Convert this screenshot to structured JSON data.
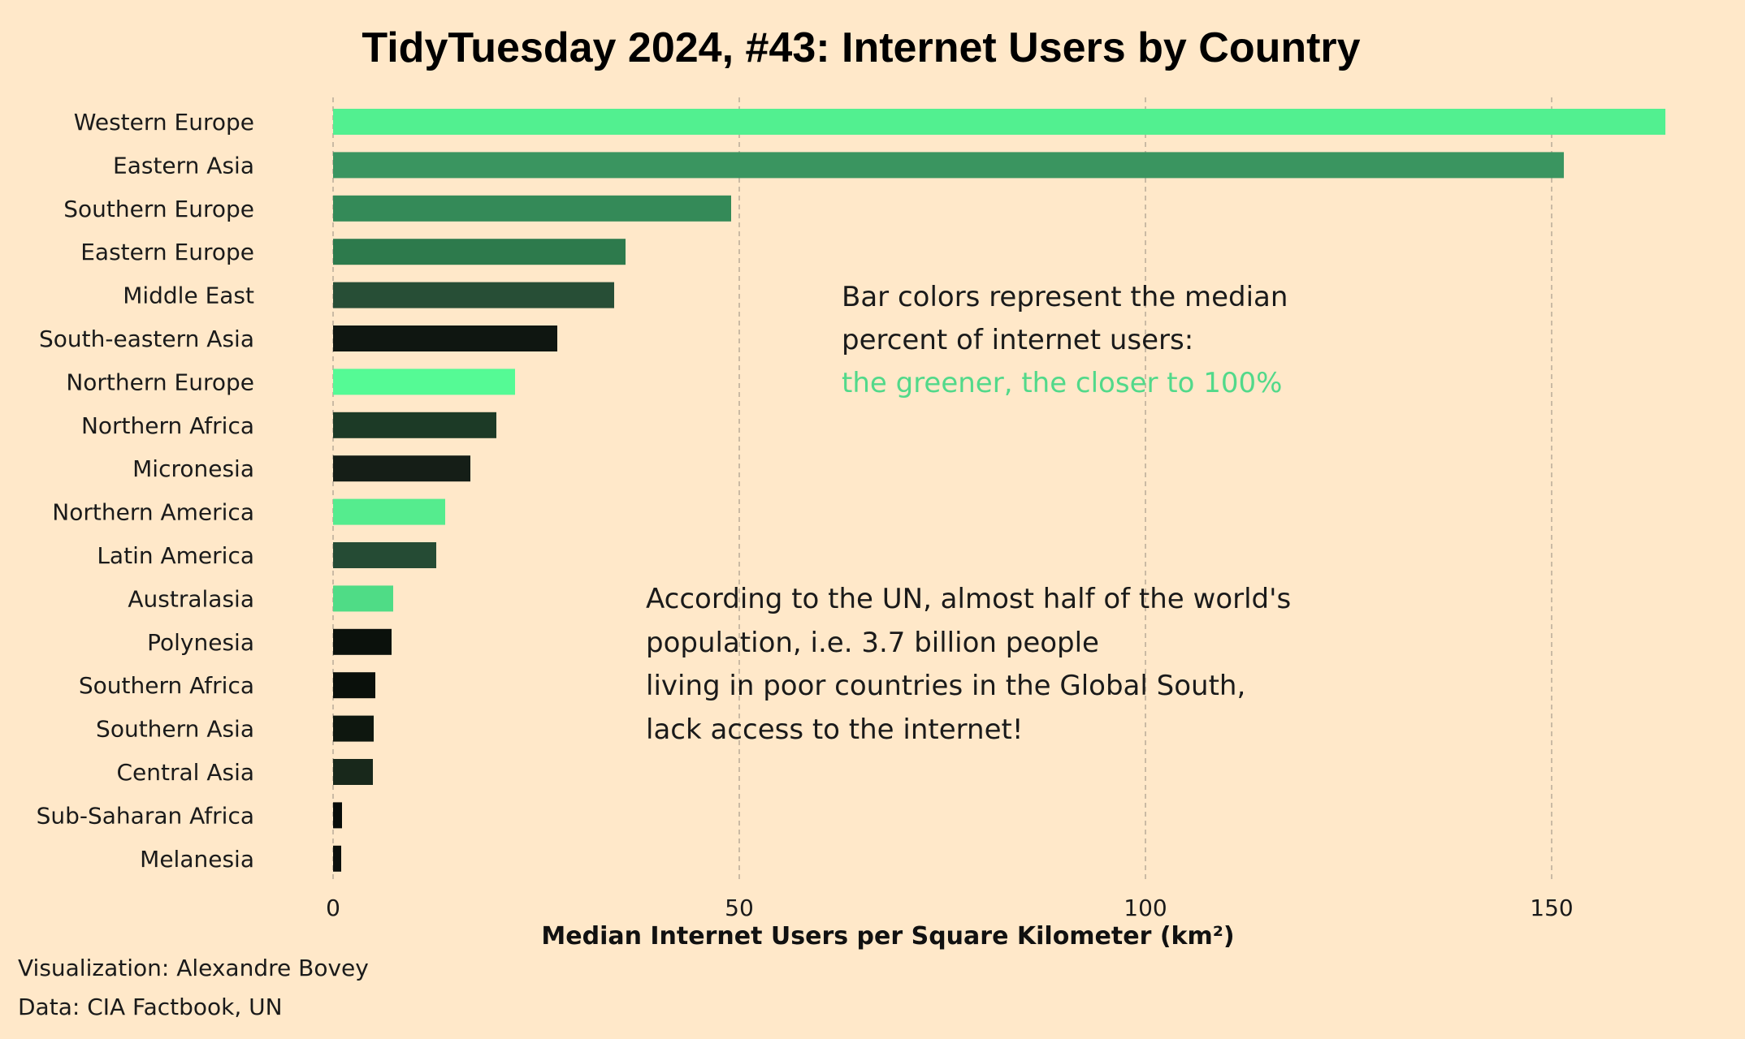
{
  "chart_data": {
    "type": "bar",
    "orientation": "horizontal",
    "title": "TidyTuesday 2024, #43: Internet Users by Country",
    "xlabel": "Median Internet Users per Square Kilometer (km²)",
    "ylabel": "",
    "xlim": [
      0,
      165
    ],
    "xticks": [
      0,
      50,
      100,
      150
    ],
    "grid": "vertical dashed",
    "categories": [
      "Western Europe",
      "Eastern Asia",
      "Southern Europe",
      "Eastern Europe",
      "Middle East",
      "South-eastern Asia",
      "Northern Europe",
      "Northern Africa",
      "Micronesia",
      "Northern America",
      "Latin America",
      "Australasia",
      "Polynesia",
      "Southern Africa",
      "Southern Asia",
      "Central Asia",
      "Sub-Saharan Africa",
      "Melanesia"
    ],
    "values": [
      164,
      151.5,
      49,
      36,
      34.6,
      27.6,
      22.4,
      20.1,
      16.9,
      13.8,
      12.7,
      7.4,
      7.2,
      5.2,
      5.0,
      4.9,
      1.1,
      1.0
    ],
    "bar_colors": [
      "#52f090",
      "#3a9560",
      "#348a58",
      "#2d7a4c",
      "#274e36",
      "#0f1611",
      "#55fa95",
      "#1c3a26",
      "#151e17",
      "#55ec8e",
      "#254b34",
      "#4fdc86",
      "#0b110c",
      "#0a100b",
      "#0e170f",
      "#18281b",
      "#080c09",
      "#0b0f0c"
    ],
    "color_meaning": "median percent of internet users (greener = closer to 100%)",
    "annotations": {
      "color_note": [
        "Bar colors represent the median",
        "percent of internet users:"
      ],
      "color_note_highlight": "the greener, the closer to 100%",
      "un_note": [
        "According to the UN, almost half of the world's",
        "population, i.e. 3.7 billion people",
        "living in poor countries in the Global South,",
        "lack access to the internet!"
      ]
    },
    "caption": [
      "Visualization: Alexandre Bovey",
      "Data: CIA Factbook, UN"
    ]
  },
  "colors": {
    "background": "#ffe8c9",
    "accent_green": "#52d98a",
    "grid": "#b9ab98"
  }
}
